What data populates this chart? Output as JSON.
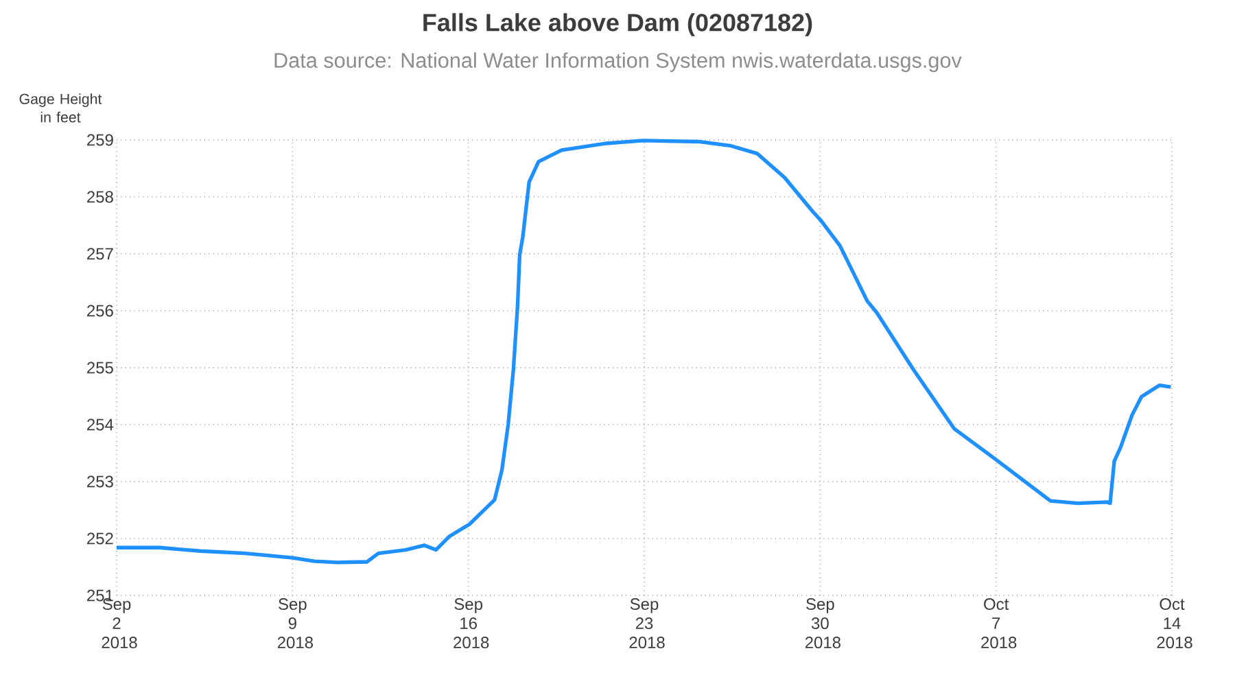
{
  "chart_data": {
    "type": "line",
    "title": "Falls Lake above Dam (02087182)",
    "subtitle": "Data source: National Water Information System nwis.waterdata.usgs.gov",
    "ylabel": "Gage Height in feet",
    "xlim": [
      "2018-09-02",
      "2018-10-14"
    ],
    "xticks": [
      {
        "value": "2018-09-02",
        "label": "Sep 2 2018"
      },
      {
        "value": "2018-09-09",
        "label": "Sep 9 2018"
      },
      {
        "value": "2018-09-16",
        "label": "Sep 16 2018"
      },
      {
        "value": "2018-09-23",
        "label": "Sep 23 2018"
      },
      {
        "value": "2018-09-30",
        "label": "Sep 30 2018"
      },
      {
        "value": "2018-10-07",
        "label": "Oct 7 2018"
      },
      {
        "value": "2018-10-14",
        "label": "Oct 14 2018"
      }
    ],
    "ylim": [
      251,
      259
    ],
    "yticks": [
      251,
      252,
      253,
      254,
      255,
      256,
      257,
      258,
      259
    ],
    "grid": true,
    "marker": "none",
    "line_style": "solid",
    "series": [
      {
        "color": "#1e90ff",
        "x": [
          "2018-09-02T00:00",
          "2018-09-03T17:00",
          "2018-09-05T08:00",
          "2018-09-07T03:00",
          "2018-09-09T00:00",
          "2018-09-09T21:00",
          "2018-09-10T19:00",
          "2018-09-11T23:00",
          "2018-09-12T10:00",
          "2018-09-13T12:00",
          "2018-09-14T06:00",
          "2018-09-14T17:00",
          "2018-09-15T06:00",
          "2018-09-16T01:00",
          "2018-09-17T01:00",
          "2018-09-17T08:00",
          "2018-09-17T14:00",
          "2018-09-17T19:00",
          "2018-09-17T23:00",
          "2018-09-18T01:00",
          "2018-09-18T04:00",
          "2018-09-18T10:00",
          "2018-09-18T19:00",
          "2018-09-19T17:00",
          "2018-09-21T12:00",
          "2018-09-22T23:00",
          "2018-09-25T04:00",
          "2018-09-26T10:00",
          "2018-09-27T12:00",
          "2018-09-28T14:00",
          "2018-09-29T17:00",
          "2018-09-30T01:00",
          "2018-09-30T19:00",
          "2018-10-01T21:00",
          "2018-10-02T06:00",
          "2018-10-03T17:00",
          "2018-10-05T08:00",
          "2018-10-06T23:00",
          "2018-10-09T04:00",
          "2018-10-10T06:00",
          "2018-10-11T10:00",
          "2018-10-11T13:00",
          "2018-10-11T17:00",
          "2018-10-11T23:00",
          "2018-10-12T10:00",
          "2018-10-12T19:00",
          "2018-10-13T12:00",
          "2018-10-13T23:00"
        ],
        "values": [
          251.84,
          251.84,
          251.78,
          251.74,
          251.66,
          251.6,
          251.58,
          251.59,
          251.74,
          251.8,
          251.88,
          251.8,
          252.04,
          252.25,
          252.68,
          253.2,
          254.0,
          254.97,
          256.09,
          256.98,
          257.3,
          258.26,
          258.62,
          258.82,
          258.94,
          258.99,
          258.97,
          258.9,
          258.76,
          258.34,
          257.74,
          257.58,
          257.14,
          256.17,
          255.97,
          254.97,
          253.93,
          253.4,
          252.66,
          252.62,
          252.64,
          252.62,
          253.36,
          253.6,
          254.17,
          254.49,
          254.69,
          254.66
        ]
      }
    ]
  }
}
